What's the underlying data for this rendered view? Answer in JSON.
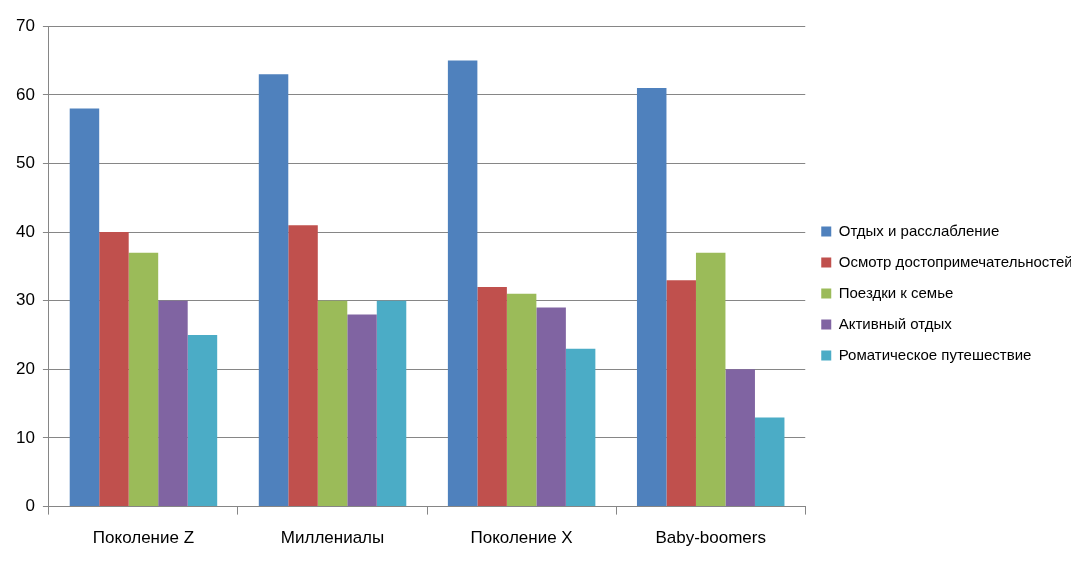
{
  "chart_data": {
    "type": "bar",
    "categories": [
      "Поколение Z",
      "Миллениалы",
      "Поколение X",
      "Baby-boomers"
    ],
    "series": [
      {
        "name": "Отдых и расслабление",
        "color": "#4f81bd",
        "values": [
          58,
          63,
          65,
          61
        ]
      },
      {
        "name": "Осмотр достопримечательностей",
        "color": "#c0504d",
        "values": [
          40,
          41,
          32,
          33
        ]
      },
      {
        "name": "Поездки к семье",
        "color": "#9bbb59",
        "values": [
          37,
          30,
          31,
          37
        ]
      },
      {
        "name": "Активный отдых",
        "color": "#8064a2",
        "values": [
          30,
          28,
          29,
          20
        ]
      },
      {
        "name": "Роматическое путешествие",
        "color": "#4bacc6",
        "values": [
          25,
          30,
          23,
          13
        ]
      }
    ],
    "ylim": [
      0,
      70
    ],
    "yticks": [
      0,
      10,
      20,
      30,
      40,
      50,
      60,
      70
    ],
    "grid": "y",
    "legend": "right"
  }
}
